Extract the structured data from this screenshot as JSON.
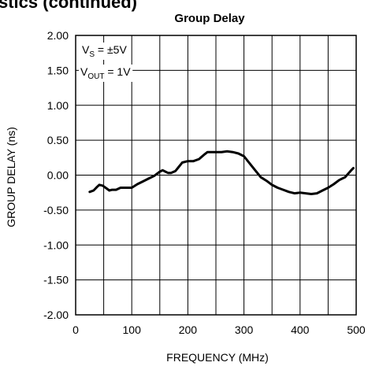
{
  "header": {
    "text": "stics (continued)"
  },
  "chart_data": {
    "type": "line",
    "title": "Group Delay",
    "xlabel": "FREQUENCY (MHz)",
    "ylabel": "GROUP DELAY (ns)",
    "xlim": [
      0,
      500
    ],
    "ylim": [
      -2.0,
      2.0
    ],
    "xticks": [
      "0",
      "100",
      "200",
      "300",
      "400",
      "500"
    ],
    "yticks": [
      "2.00",
      "1.50",
      "1.00",
      "0.50",
      "0.00",
      "-0.50",
      "-1.00",
      "-1.50",
      "-2.00"
    ],
    "grid": true,
    "annotations": [
      {
        "main": "V",
        "sub": "S",
        "rest": " = ±5V"
      },
      {
        "main": "V",
        "sub": "OUT",
        "rest": " = 1V"
      }
    ],
    "series": [
      {
        "x": [
          25,
          32,
          38,
          42,
          48,
          55,
          60,
          65,
          72,
          80,
          90,
          100,
          110,
          120,
          130,
          140,
          150,
          155,
          160,
          165,
          170,
          178,
          185,
          190,
          200,
          210,
          220,
          230,
          235,
          240,
          250,
          260,
          270,
          280,
          290,
          300,
          310,
          320,
          330,
          340,
          350,
          360,
          370,
          380,
          390,
          400,
          410,
          420,
          430,
          440,
          450,
          460,
          470,
          480,
          490,
          495
        ],
        "y": [
          -0.24,
          -0.22,
          -0.17,
          -0.14,
          -0.15,
          -0.19,
          -0.22,
          -0.21,
          -0.21,
          -0.18,
          -0.18,
          -0.18,
          -0.13,
          -0.09,
          -0.05,
          -0.01,
          0.05,
          0.07,
          0.05,
          0.03,
          0.03,
          0.06,
          0.13,
          0.18,
          0.2,
          0.2,
          0.23,
          0.3,
          0.33,
          0.33,
          0.33,
          0.33,
          0.34,
          0.33,
          0.31,
          0.27,
          0.17,
          0.07,
          -0.03,
          -0.08,
          -0.14,
          -0.18,
          -0.21,
          -0.24,
          -0.26,
          -0.25,
          -0.26,
          -0.27,
          -0.26,
          -0.22,
          -0.18,
          -0.13,
          -0.07,
          -0.03,
          0.06,
          0.1
        ]
      }
    ]
  }
}
